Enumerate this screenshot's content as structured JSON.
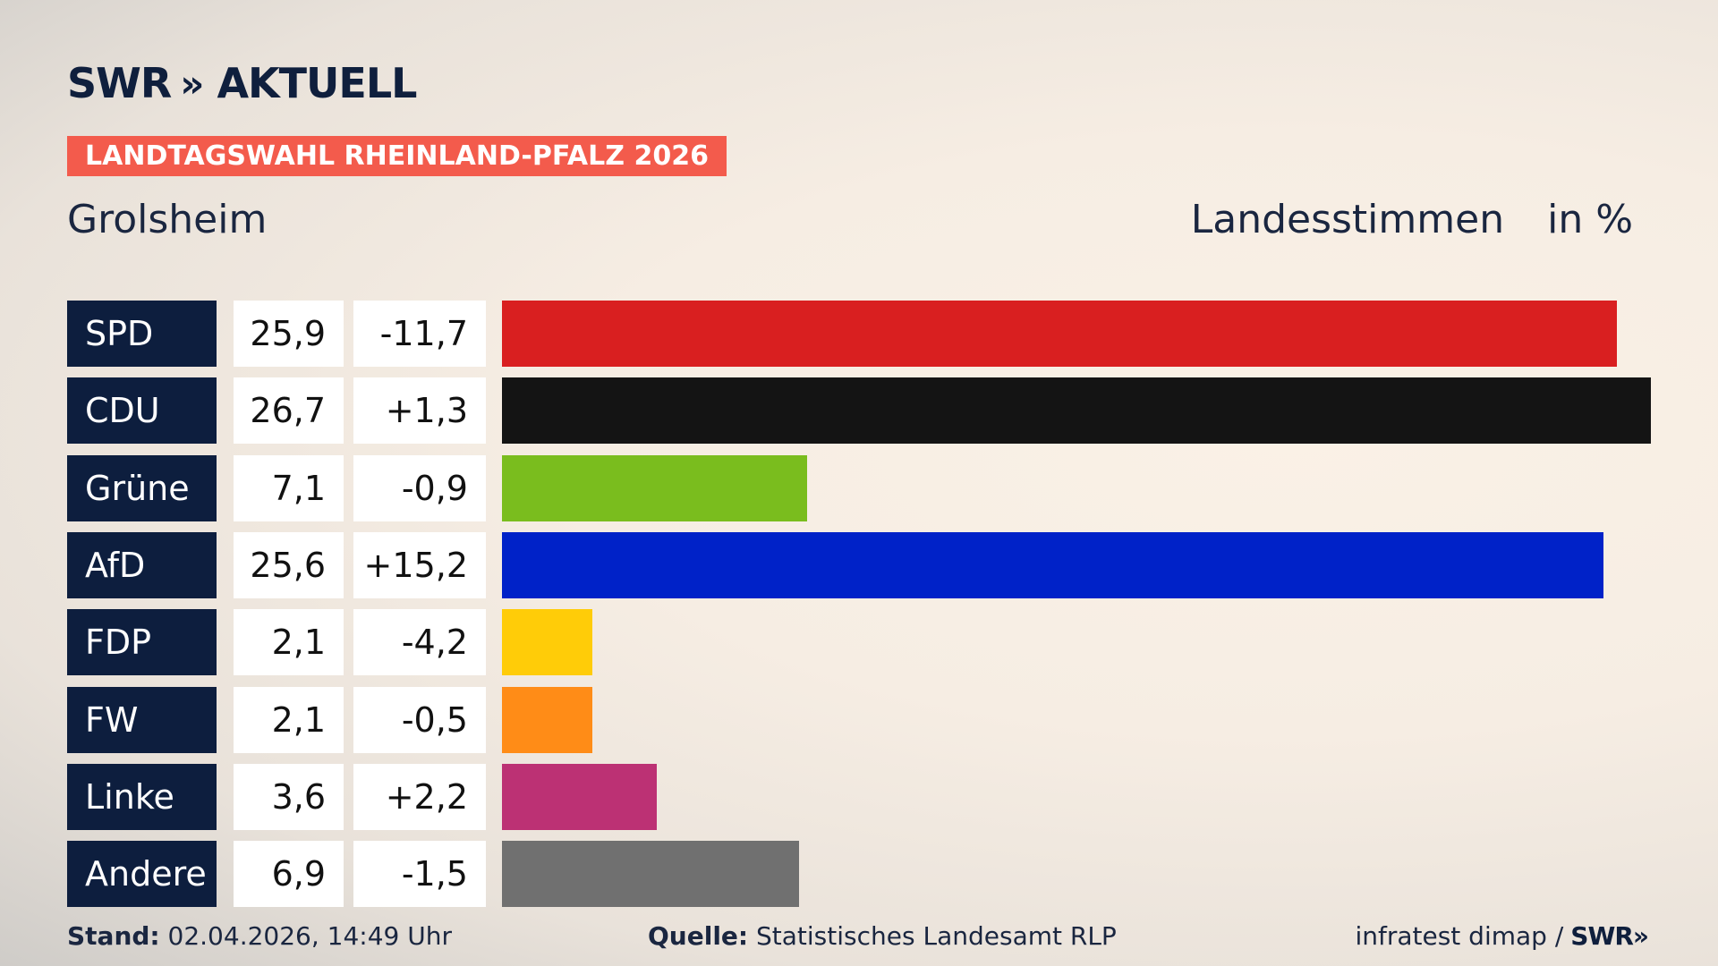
{
  "header": {
    "logo_text": "SWR",
    "logo_chevrons": "»",
    "logo_suffix": "AKTUELL",
    "banner": "LANDTAGSWAHL RHEINLAND-PFALZ 2026",
    "place": "Grolsheim",
    "metric": "Landesstimmen",
    "unit": "in %"
  },
  "chart_data": {
    "type": "bar",
    "title": "",
    "xlabel": "",
    "ylabel": "",
    "ylim": [
      0,
      26.7
    ],
    "categories": [
      "SPD",
      "CDU",
      "Grüne",
      "AfD",
      "FDP",
      "FW",
      "Linke",
      "Andere"
    ],
    "values": [
      25.9,
      26.7,
      7.1,
      25.6,
      2.1,
      2.1,
      3.6,
      6.9
    ],
    "value_labels": [
      "25,9",
      "26,7",
      "7,1",
      "25,6",
      "2,1",
      "2,1",
      "3,6",
      "6,9"
    ],
    "changes": [
      "-11,7",
      "+1,3",
      "-0,9",
      "+15,2",
      "-4,2",
      "-0,5",
      "+2,2",
      "-1,5"
    ],
    "colors": [
      "#d91f20",
      "#141414",
      "#7abd1e",
      "#0022c8",
      "#ffcc08",
      "#ff8c17",
      "#bc3174",
      "#707070"
    ]
  },
  "footer": {
    "stand_label": "Stand:",
    "stand_value": "02.04.2026, 14:49 Uhr",
    "source_label": "Quelle:",
    "source_value": "Statistisches Landesamt RLP",
    "credit": "infratest dimap /",
    "credit_logo": "SWR",
    "credit_chevrons": "»"
  }
}
